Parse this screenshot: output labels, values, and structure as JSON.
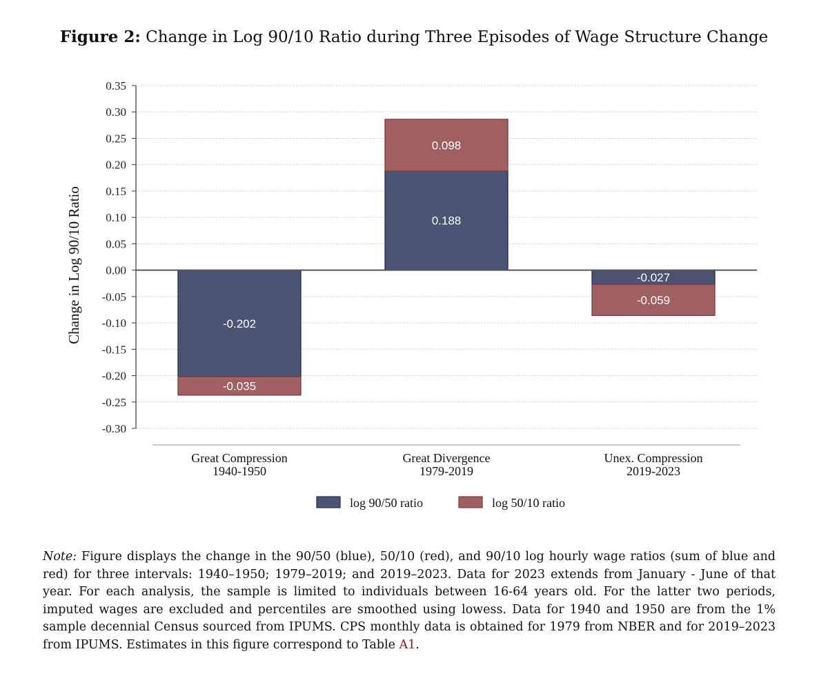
{
  "figure": {
    "label": "Figure 2:",
    "title": "Change in Log 90/10 Ratio during Three Episodes of Wage Structure Change"
  },
  "chart_data": {
    "type": "bar",
    "stacked": true,
    "categories": [
      [
        "Great Compression",
        "1940-1950"
      ],
      [
        "Great Divergence",
        "1979-2019"
      ],
      [
        "Unex. Compression",
        "2019-2023"
      ]
    ],
    "series": [
      {
        "name": "log 90/50 ratio",
        "values": [
          -0.202,
          0.188,
          -0.027
        ],
        "labels": [
          "-0.202",
          "0.188",
          "-0.027"
        ],
        "color": "#4b5573"
      },
      {
        "name": "log 50/10 ratio",
        "values": [
          -0.035,
          0.098,
          -0.059
        ],
        "labels": [
          "-0.035",
          "0.098",
          "-0.059"
        ],
        "color": "#a06062"
      }
    ],
    "ylabel": "Change in Log 90/10 Ratio",
    "ylim": [
      -0.3,
      0.35
    ],
    "yticks": [
      "-0.30",
      "-0.25",
      "-0.20",
      "-0.15",
      "-0.10",
      "-0.05",
      "0.00",
      "0.05",
      "0.10",
      "0.15",
      "0.20",
      "0.25",
      "0.30",
      "0.35"
    ],
    "grid": true,
    "legend_position": "bottom"
  },
  "note": {
    "label": "Note:",
    "text": " Figure displays the change in the 90/50 (blue), 50/10 (red), and 90/10 log hourly wage ratios (sum of blue and red) for three intervals: 1940–1950; 1979–2019; and 2019–2023. Data for 2023 extends from January - June of that year. For each analysis, the sample is limited to individuals between 16-64 years old. For the latter two periods, imputed wages are excluded and percentiles are smoothed using lowess. Data for 1940 and 1950 are from the 1% sample decennial Census sourced from IPUMS. CPS monthly data is obtained for 1979 from NBER and for 2019–2023 from IPUMS. Estimates in this figure correspond to Table ",
    "table_ref": "A1",
    "end": "."
  }
}
